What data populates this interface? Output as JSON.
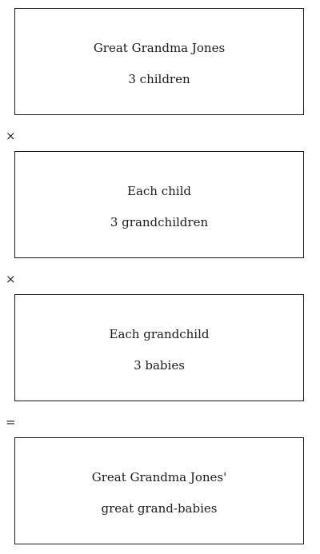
{
  "boxes": [
    {
      "line1": "Great Grandma Jones",
      "line2": "3 children"
    },
    {
      "line1": "Each child",
      "line2": "3 grandchildren"
    },
    {
      "line1": "Each grandchild",
      "line2": "3 babies"
    },
    {
      "line1": "Great Grandma Jones'",
      "line2": "great grand-babies"
    }
  ],
  "operators": [
    "×",
    "×",
    "="
  ]
}
